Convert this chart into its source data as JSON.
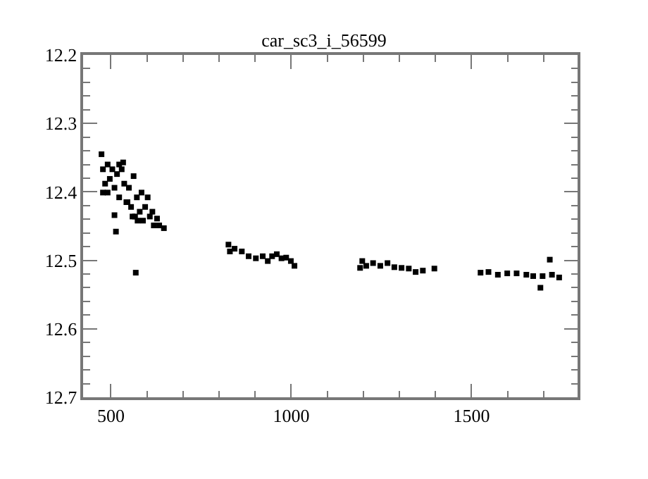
{
  "chart_data": {
    "type": "scatter",
    "title": "car_sc3_i_56599",
    "marker": "square",
    "grid": false,
    "xlim": [
      423,
      1794
    ],
    "xticks": [
      500,
      1000,
      1500
    ],
    "ylim": [
      12.7,
      12.2
    ],
    "yticks": [
      12.2,
      12.3,
      12.4,
      12.5,
      12.6,
      12.7
    ],
    "series": [
      {
        "color": "#000000",
        "x": [
          474,
          478,
          478,
          484,
          491,
          497,
          504,
          510,
          510,
          514,
          517,
          523,
          530,
          534,
          537,
          543,
          550,
          556,
          563,
          567,
          569,
          572,
          580,
          585,
          589,
          595,
          602,
          608,
          615,
          619,
          628,
          634,
          647,
          491,
          523,
          546,
          560,
          574,
          826,
          830,
          843,
          863,
          882,
          902,
          921,
          935,
          947,
          960,
          973,
          986,
          999,
          1009,
          1191,
          1197,
          1208,
          1227,
          1247,
          1267,
          1286,
          1306,
          1326,
          1345,
          1365,
          1397,
          1525,
          1547,
          1573,
          1599,
          1625,
          1652,
          1671,
          1691,
          1697,
          1717,
          1723,
          1743
        ],
        "values": [
          12.345,
          12.367,
          12.401,
          12.388,
          12.36,
          12.381,
          12.367,
          12.394,
          12.434,
          12.458,
          12.374,
          12.408,
          12.367,
          12.357,
          12.388,
          12.415,
          12.394,
          12.422,
          12.377,
          12.436,
          12.518,
          12.408,
          12.429,
          12.401,
          12.442,
          12.422,
          12.408,
          12.436,
          12.429,
          12.449,
          12.439,
          12.449,
          12.453,
          12.401,
          12.36,
          12.415,
          12.436,
          12.442,
          12.477,
          12.487,
          12.483,
          12.487,
          12.494,
          12.497,
          12.494,
          12.501,
          12.494,
          12.491,
          12.497,
          12.496,
          12.501,
          12.508,
          12.511,
          12.501,
          12.508,
          12.504,
          12.508,
          12.504,
          12.51,
          12.511,
          12.512,
          12.517,
          12.515,
          12.512,
          12.518,
          12.517,
          12.521,
          12.519,
          12.519,
          12.521,
          12.523,
          12.54,
          12.523,
          12.499,
          12.521,
          12.525
        ]
      }
    ]
  }
}
